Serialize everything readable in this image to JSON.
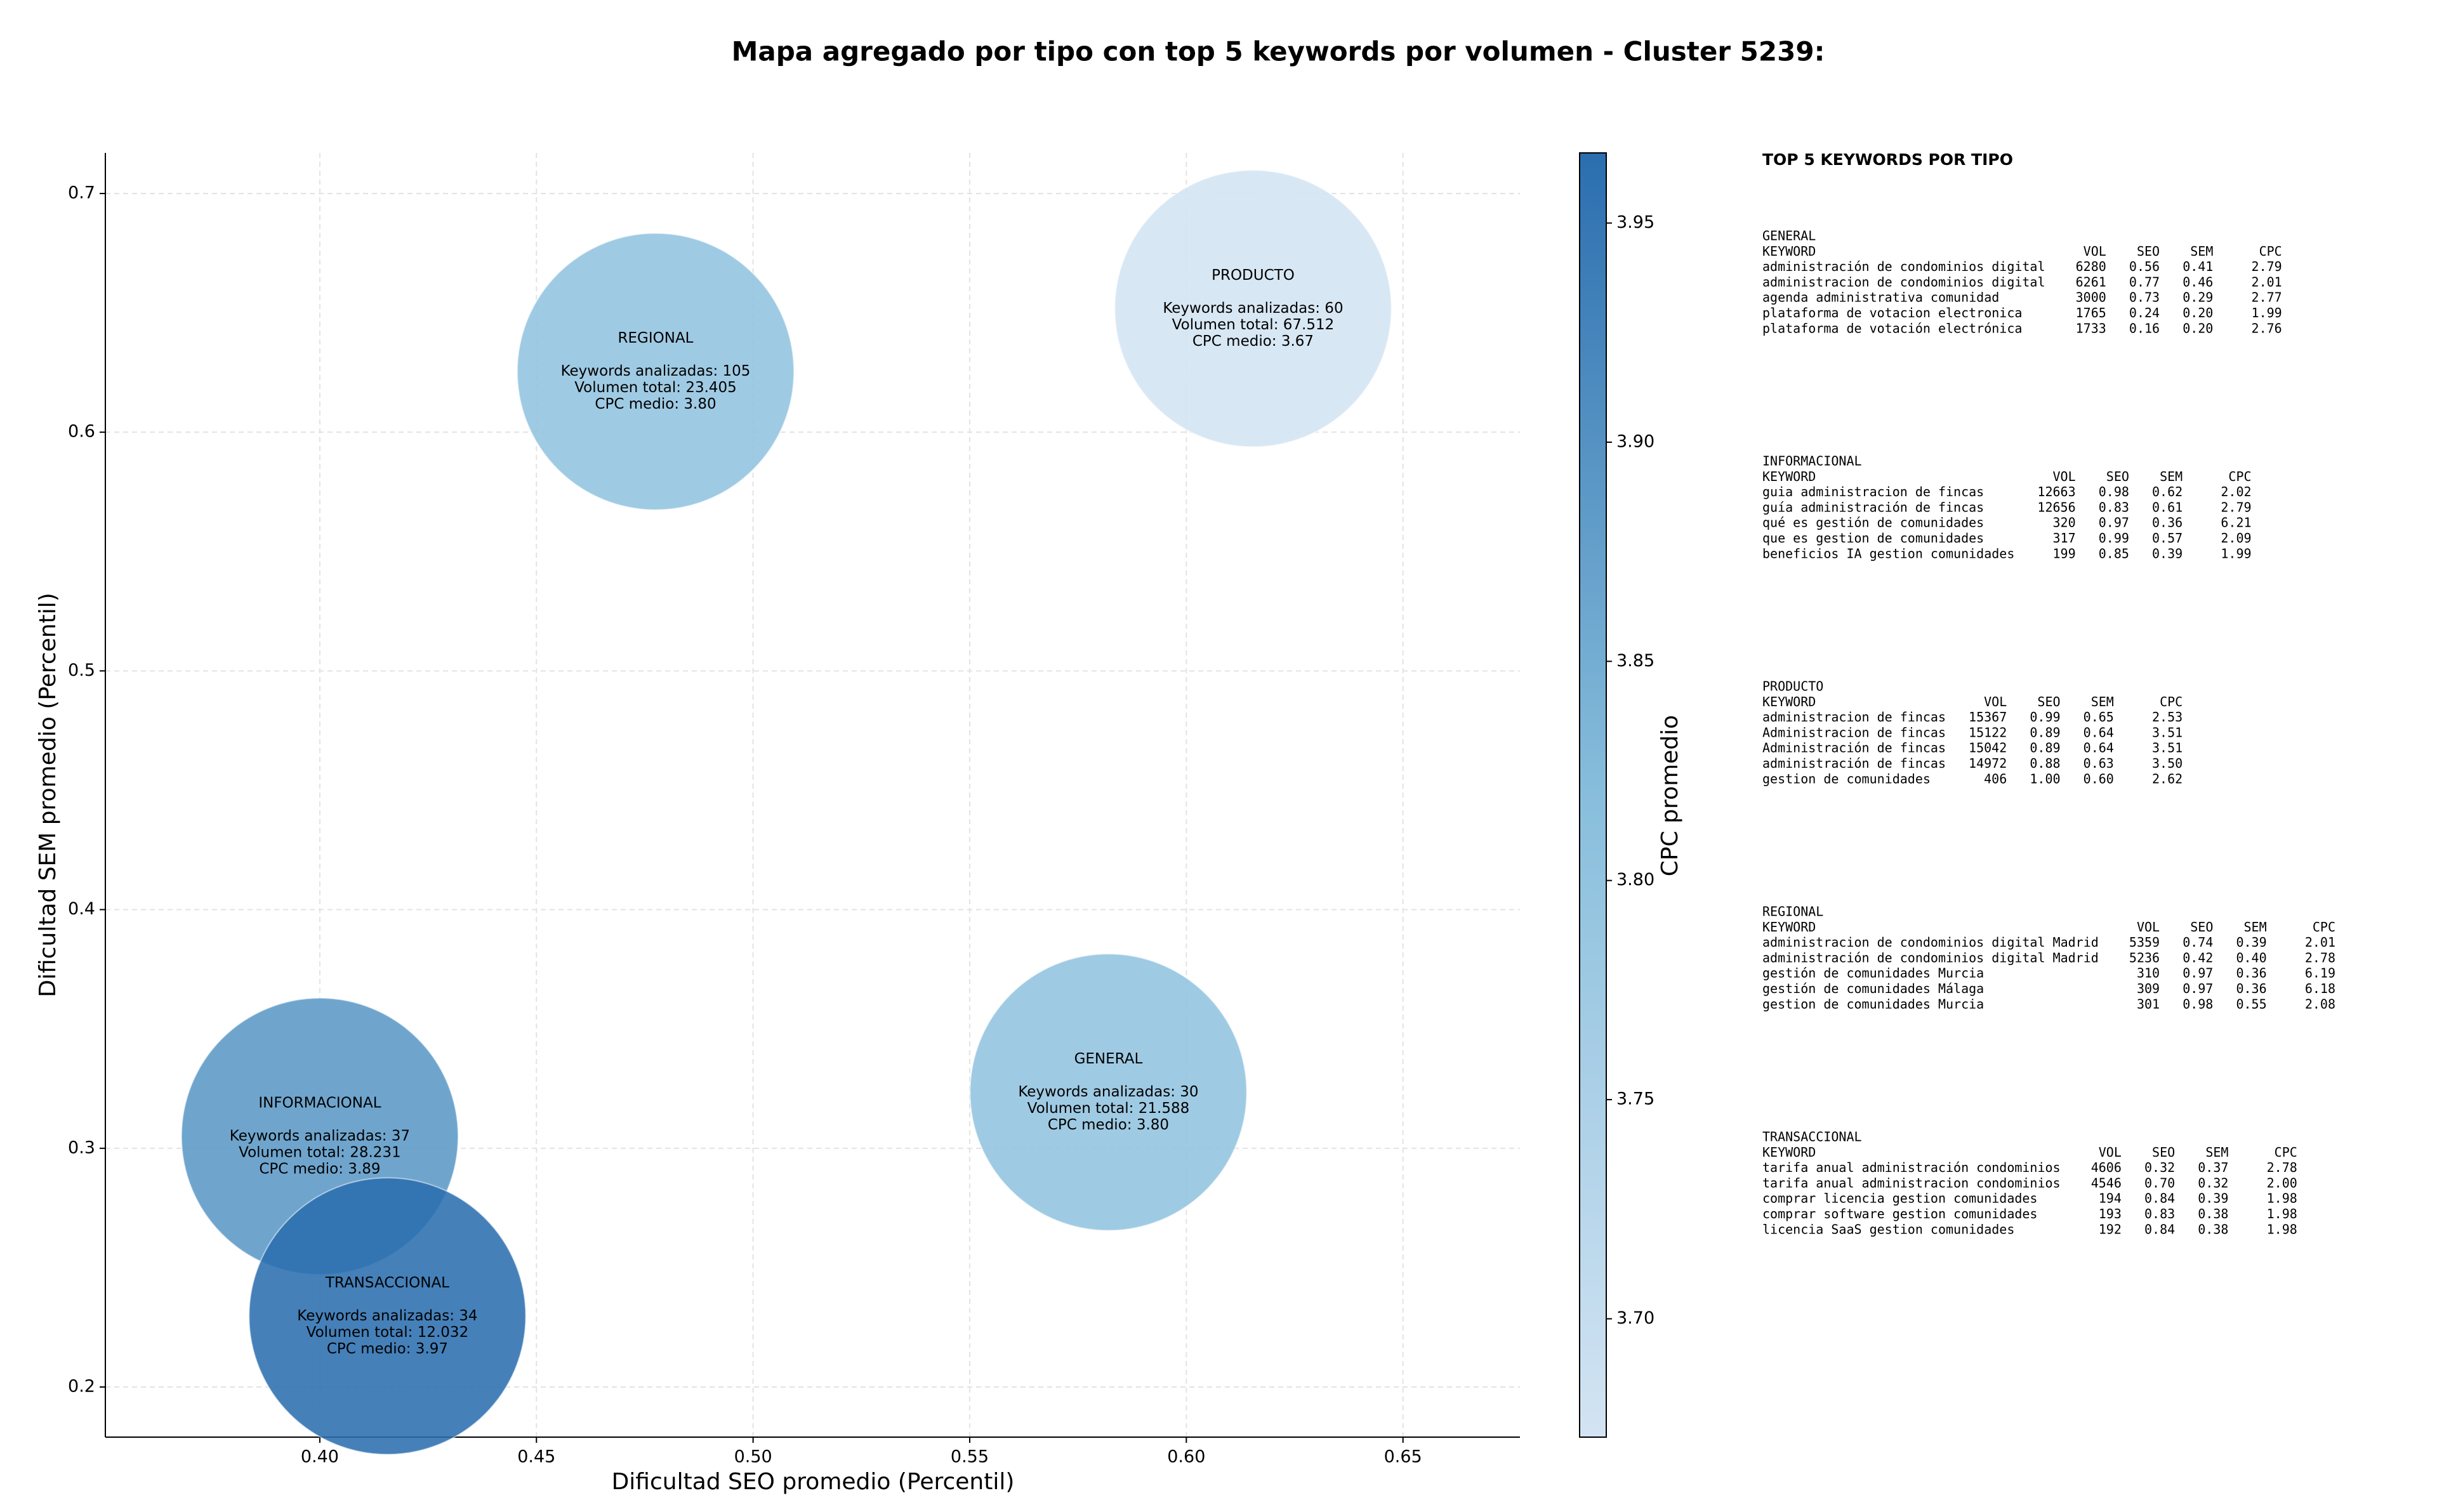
{
  "chart_data": {
    "type": "bubble",
    "title": "Mapa agregado por tipo con top 5 keywords por volumen - Cluster 5239:",
    "xlabel": "Dificultad SEO promedio (Percentil)",
    "ylabel": "Dificultad SEM promedio (Percentil)",
    "xlim": [
      0.3505,
      0.677
    ],
    "ylim": [
      0.179,
      0.717
    ],
    "xticks": [
      {
        "value": 0.4,
        "label": "0.40"
      },
      {
        "value": 0.45,
        "label": "0.45"
      },
      {
        "value": 0.5,
        "label": "0.50"
      },
      {
        "value": 0.55,
        "label": "0.55"
      },
      {
        "value": 0.6,
        "label": "0.60"
      },
      {
        "value": 0.65,
        "label": "0.65"
      }
    ],
    "yticks": [
      0.2,
      0.3,
      0.4,
      0.5,
      0.6,
      0.7
    ],
    "grid": true,
    "colorbar": {
      "label": "CPC promedio",
      "clim": [
        3.673,
        3.966
      ],
      "ticks": [
        {
          "value": 3.7,
          "label": "3.70"
        },
        {
          "value": 3.75,
          "label": "3.75"
        },
        {
          "value": 3.8,
          "label": "3.80"
        },
        {
          "value": 3.85,
          "label": "3.85"
        },
        {
          "value": 3.9,
          "label": "3.90"
        },
        {
          "value": 3.95,
          "label": "3.95"
        }
      ],
      "colormap": [
        "#d3e4f3",
        "#88bedc",
        "#2b6eaf"
      ]
    },
    "points": [
      {
        "name": "GENERAL",
        "x": 0.582,
        "y": 0.3235,
        "cpc": 3.8,
        "text": [
          "Keywords analizadas: 30",
          "Volumen total: 21.588",
          "CPC medio: 3.80"
        ]
      },
      {
        "name": "INFORMACIONAL",
        "x": 0.4,
        "y": 0.305,
        "cpc": 3.89,
        "text": [
          "Keywords analizadas: 37",
          "Volumen total: 28.231",
          "CPC medio: 3.89"
        ]
      },
      {
        "name": "PRODUCTO",
        "x": 0.6154,
        "y": 0.6518,
        "cpc": 3.67,
        "text": [
          "Keywords analizadas: 60",
          "Volumen total: 67.512",
          "CPC medio: 3.67"
        ]
      },
      {
        "name": "REGIONAL",
        "x": 0.4775,
        "y": 0.6254,
        "cpc": 3.8,
        "text": [
          "Keywords analizadas: 105",
          "Volumen total: 23.405",
          "CPC medio: 3.80"
        ]
      },
      {
        "name": "TRANSACCIONAL",
        "x": 0.4156,
        "y": 0.2297,
        "cpc": 3.97,
        "text": [
          "Keywords analizadas: 34",
          "Volumen total: 12.032",
          "CPC medio: 3.97"
        ]
      }
    ],
    "side_panel": {
      "title": "TOP 5 KEYWORDS POR TIPO",
      "tables": [
        {
          "name": "GENERAL",
          "columns": [
            "KEYWORD",
            "VOL",
            "SEO",
            "SEM",
            "CPC"
          ],
          "rows": [
            [
              "administración de condominios digital",
              "6280",
              "0.56",
              "0.41",
              "2.79"
            ],
            [
              "administracion de condominios digital",
              "6261",
              "0.77",
              "0.46",
              "2.01"
            ],
            [
              "agenda administrativa comunidad",
              "3000",
              "0.73",
              "0.29",
              "2.77"
            ],
            [
              "plataforma de votacion electronica",
              "1765",
              "0.24",
              "0.20",
              "1.99"
            ],
            [
              "plataforma de votación electrónica",
              "1733",
              "0.16",
              "0.20",
              "2.76"
            ]
          ]
        },
        {
          "name": "INFORMACIONAL",
          "columns": [
            "KEYWORD",
            "VOL",
            "SEO",
            "SEM",
            "CPC"
          ],
          "rows": [
            [
              "guia administracion de fincas",
              "12663",
              "0.98",
              "0.62",
              "2.02"
            ],
            [
              "guía administración de fincas",
              "12656",
              "0.83",
              "0.61",
              "2.79"
            ],
            [
              "qué es gestión de comunidades",
              "320",
              "0.97",
              "0.36",
              "6.21"
            ],
            [
              "que es gestion de comunidades",
              "317",
              "0.99",
              "0.57",
              "2.09"
            ],
            [
              "beneficios IA gestion comunidades",
              "199",
              "0.85",
              "0.39",
              "1.99"
            ]
          ]
        },
        {
          "name": "PRODUCTO",
          "columns": [
            "KEYWORD",
            "VOL",
            "SEO",
            "SEM",
            "CPC"
          ],
          "rows": [
            [
              "administracion de fincas",
              "15367",
              "0.99",
              "0.65",
              "2.53"
            ],
            [
              "Administracion de fincas",
              "15122",
              "0.89",
              "0.64",
              "3.51"
            ],
            [
              "Administración de fincas",
              "15042",
              "0.89",
              "0.64",
              "3.51"
            ],
            [
              "administración de fincas",
              "14972",
              "0.88",
              "0.63",
              "3.50"
            ],
            [
              "gestion de comunidades",
              "406",
              "1.00",
              "0.60",
              "2.62"
            ]
          ]
        },
        {
          "name": "REGIONAL",
          "columns": [
            "KEYWORD",
            "VOL",
            "SEO",
            "SEM",
            "CPC"
          ],
          "rows": [
            [
              "administracion de condominios digital Madrid",
              "5359",
              "0.74",
              "0.39",
              "2.01"
            ],
            [
              "administración de condominios digital Madrid",
              "5236",
              "0.42",
              "0.40",
              "2.78"
            ],
            [
              "gestión de comunidades Murcia",
              "310",
              "0.97",
              "0.36",
              "6.19"
            ],
            [
              "gestión de comunidades Málaga",
              "309",
              "0.97",
              "0.36",
              "6.18"
            ],
            [
              "gestion de comunidades Murcia",
              "301",
              "0.98",
              "0.55",
              "2.08"
            ]
          ]
        },
        {
          "name": "TRANSACCIONAL",
          "columns": [
            "KEYWORD",
            "VOL",
            "SEO",
            "SEM",
            "CPC"
          ],
          "rows": [
            [
              "tarifa anual administración condominios",
              "4606",
              "0.32",
              "0.37",
              "2.78"
            ],
            [
              "tarifa anual administracion condominios",
              "4546",
              "0.70",
              "0.32",
              "2.00"
            ],
            [
              "comprar licencia gestion comunidades",
              "194",
              "0.84",
              "0.39",
              "1.98"
            ],
            [
              "comprar software gestion comunidades",
              "193",
              "0.83",
              "0.38",
              "1.98"
            ],
            [
              "licencia SaaS gestion comunidades",
              "192",
              "0.84",
              "0.38",
              "1.98"
            ]
          ]
        }
      ]
    }
  }
}
